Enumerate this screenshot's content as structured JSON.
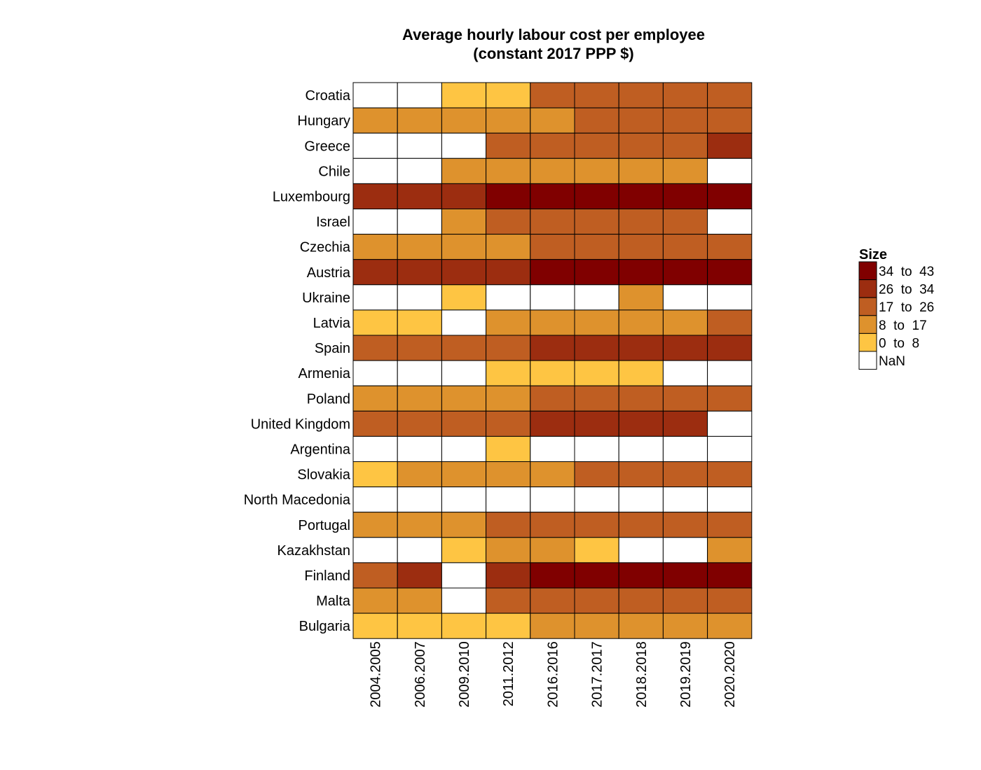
{
  "chart_data": {
    "type": "heatmap",
    "title": [
      "Average hourly labour cost per employee",
      "(constant 2017 PPP $)"
    ],
    "columns": [
      "2004.2005",
      "2006.2007",
      "2009.2010",
      "2011.2012",
      "2016.2016",
      "2017.2017",
      "2018.2018",
      "2019.2019",
      "2020.2020"
    ],
    "rows": [
      "Croatia",
      "Hungary",
      "Greece",
      "Chile",
      "Luxembourg",
      "Israel",
      "Czechia",
      "Austria",
      "Ukraine",
      "Latvia",
      "Spain",
      "Armenia",
      "Poland",
      "United Kingdom",
      "Argentina",
      "Slovakia",
      "North Macedonia",
      "Portugal",
      "Kazakhstan",
      "Finland",
      "Malta",
      "Bulgaria"
    ],
    "bins": [
      {
        "label": "34  to  43",
        "color": "#800000"
      },
      {
        "label": "26  to  34",
        "color": "#9c2d10"
      },
      {
        "label": "17  to  26",
        "color": "#bf5e22"
      },
      {
        "label": "8  to  17",
        "color": "#de922d"
      },
      {
        "label": "0  to  8",
        "color": "#fec543"
      },
      {
        "label": "NaN",
        "color": "#ffffff"
      }
    ],
    "bin_index_note_values_are_bin_indices": false,
    "cells": [
      [
        5,
        5,
        4,
        4,
        2,
        2,
        2,
        2,
        2
      ],
      [
        3,
        3,
        3,
        3,
        3,
        2,
        2,
        2,
        2
      ],
      [
        5,
        5,
        5,
        2,
        2,
        2,
        2,
        2,
        1
      ],
      [
        5,
        5,
        3,
        3,
        3,
        3,
        3,
        3,
        5
      ],
      [
        1,
        1,
        1,
        0,
        0,
        0,
        0,
        0,
        0
      ],
      [
        5,
        5,
        3,
        2,
        2,
        2,
        2,
        2,
        5
      ],
      [
        3,
        3,
        3,
        3,
        2,
        2,
        2,
        2,
        2
      ],
      [
        1,
        1,
        1,
        1,
        0,
        0,
        0,
        0,
        0
      ],
      [
        5,
        5,
        4,
        5,
        5,
        5,
        3,
        5,
        5
      ],
      [
        4,
        4,
        5,
        3,
        3,
        3,
        3,
        3,
        2
      ],
      [
        2,
        2,
        2,
        2,
        1,
        1,
        1,
        1,
        1
      ],
      [
        5,
        5,
        5,
        4,
        4,
        4,
        4,
        5,
        5
      ],
      [
        3,
        3,
        3,
        3,
        2,
        2,
        2,
        2,
        2
      ],
      [
        2,
        2,
        2,
        2,
        1,
        1,
        1,
        1,
        5
      ],
      [
        5,
        5,
        5,
        4,
        5,
        5,
        5,
        5,
        5
      ],
      [
        4,
        3,
        3,
        3,
        3,
        2,
        2,
        2,
        2
      ],
      [
        5,
        5,
        5,
        5,
        5,
        5,
        5,
        5,
        5
      ],
      [
        3,
        3,
        3,
        2,
        2,
        2,
        2,
        2,
        2
      ],
      [
        5,
        5,
        4,
        3,
        3,
        4,
        5,
        5,
        3
      ],
      [
        2,
        1,
        5,
        1,
        0,
        0,
        0,
        0,
        0
      ],
      [
        3,
        3,
        5,
        2,
        2,
        2,
        2,
        2,
        2
      ],
      [
        4,
        4,
        4,
        4,
        3,
        3,
        3,
        3,
        3
      ]
    ],
    "legend": {
      "title": "Size",
      "position": "right"
    },
    "grid": false
  }
}
